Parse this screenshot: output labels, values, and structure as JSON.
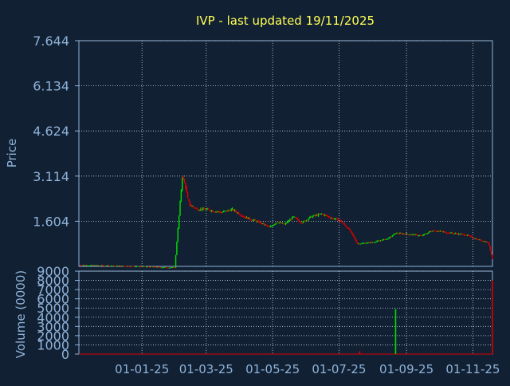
{
  "colors": {
    "background": "#112033",
    "title": "#FFFF55",
    "axis_text": "#8FB3D9",
    "frame": "#8FB3D9",
    "grid": "#C8D4E0",
    "up": "#00DD00",
    "down": "#DD0000",
    "zero_line": "#DD0000"
  },
  "chart_data": [
    {
      "type": "candlestick",
      "title": "IVP - last updated 19/11/2025",
      "ylabel": "Price",
      "ylim": [
        0.094,
        7.644
      ],
      "y_ticks": [
        "7.644",
        "6.134",
        "4.624",
        "3.114",
        "1.604"
      ],
      "y_tick_values": [
        7.644,
        6.134,
        4.624,
        3.114,
        1.604
      ],
      "grid": true,
      "x_ticks": [
        "01-01-25",
        "01-03-25",
        "01-05-25",
        "01-07-25",
        "01-09-25",
        "01-11-25"
      ],
      "date_range": [
        "2024-11-04",
        "2025-11-19"
      ],
      "series": [
        {
          "x": "2024-11-04",
          "close": 0.14,
          "dir": "flat"
        },
        {
          "x": "2024-12-01",
          "close": 0.12,
          "dir": "down"
        },
        {
          "x": "2025-01-01",
          "close": 0.09,
          "dir": "down"
        },
        {
          "x": "2025-01-31",
          "close": 0.05,
          "dir": "down"
        },
        {
          "x": "2025-02-07",
          "close": 3.1,
          "dir": "up"
        },
        {
          "x": "2025-02-10",
          "close": 2.75,
          "dir": "down"
        },
        {
          "x": "2025-02-12",
          "close": 2.35,
          "dir": "down"
        },
        {
          "x": "2025-02-14",
          "close": 2.15,
          "dir": "down"
        },
        {
          "x": "2025-02-20",
          "close": 2.02,
          "dir": "down"
        },
        {
          "x": "2025-03-01",
          "close": 2.0,
          "dir": "flat"
        },
        {
          "x": "2025-03-15",
          "close": 1.9,
          "dir": "down"
        },
        {
          "x": "2025-03-25",
          "close": 2.0,
          "dir": "up"
        },
        {
          "x": "2025-04-05",
          "close": 1.75,
          "dir": "down"
        },
        {
          "x": "2025-04-20",
          "close": 1.55,
          "dir": "down"
        },
        {
          "x": "2025-04-28",
          "close": 1.4,
          "dir": "down"
        },
        {
          "x": "2025-05-05",
          "close": 1.58,
          "dir": "up"
        },
        {
          "x": "2025-05-12",
          "close": 1.5,
          "dir": "down"
        },
        {
          "x": "2025-05-20",
          "close": 1.75,
          "dir": "up"
        },
        {
          "x": "2025-05-28",
          "close": 1.55,
          "dir": "down"
        },
        {
          "x": "2025-06-05",
          "close": 1.75,
          "dir": "up"
        },
        {
          "x": "2025-06-15",
          "close": 1.85,
          "dir": "up"
        },
        {
          "x": "2025-06-25",
          "close": 1.7,
          "dir": "down"
        },
        {
          "x": "2025-07-01",
          "close": 1.65,
          "dir": "down"
        },
        {
          "x": "2025-07-10",
          "close": 1.35,
          "dir": "down"
        },
        {
          "x": "2025-07-18",
          "close": 0.85,
          "dir": "down"
        },
        {
          "x": "2025-08-01",
          "close": 0.9,
          "dir": "up"
        },
        {
          "x": "2025-08-15",
          "close": 1.02,
          "dir": "up"
        },
        {
          "x": "2025-08-22",
          "close": 1.2,
          "dir": "up"
        },
        {
          "x": "2025-09-01",
          "close": 1.18,
          "dir": "flat"
        },
        {
          "x": "2025-09-15",
          "close": 1.12,
          "dir": "down"
        },
        {
          "x": "2025-09-25",
          "close": 1.3,
          "dir": "up"
        },
        {
          "x": "2025-10-10",
          "close": 1.22,
          "dir": "down"
        },
        {
          "x": "2025-10-25",
          "close": 1.15,
          "dir": "down"
        },
        {
          "x": "2025-11-05",
          "close": 1.0,
          "dir": "down"
        },
        {
          "x": "2025-11-15",
          "close": 0.9,
          "dir": "down"
        },
        {
          "x": "2025-11-19",
          "close": 0.35,
          "dir": "down"
        }
      ]
    },
    {
      "type": "bar",
      "ylabel": "Volume (0000)",
      "ylim": [
        0,
        9000
      ],
      "y_ticks": [
        "9000",
        "8000",
        "7000",
        "6000",
        "5000",
        "4000",
        "3000",
        "2000",
        "1000",
        "0"
      ],
      "y_tick_values": [
        9000,
        8000,
        7000,
        6000,
        5000,
        4000,
        3000,
        2000,
        1000,
        0
      ],
      "grid": true,
      "x_ticks": [
        "01-01-25",
        "01-03-25",
        "01-05-25",
        "01-07-25",
        "01-09-25",
        "01-11-25"
      ],
      "series": [
        {
          "x": "2025-07-20",
          "value": 300,
          "dir": "down"
        },
        {
          "x": "2025-08-22",
          "value": 4900,
          "dir": "up"
        },
        {
          "x": "2025-11-19",
          "value": 8000,
          "dir": "down"
        }
      ]
    }
  ]
}
